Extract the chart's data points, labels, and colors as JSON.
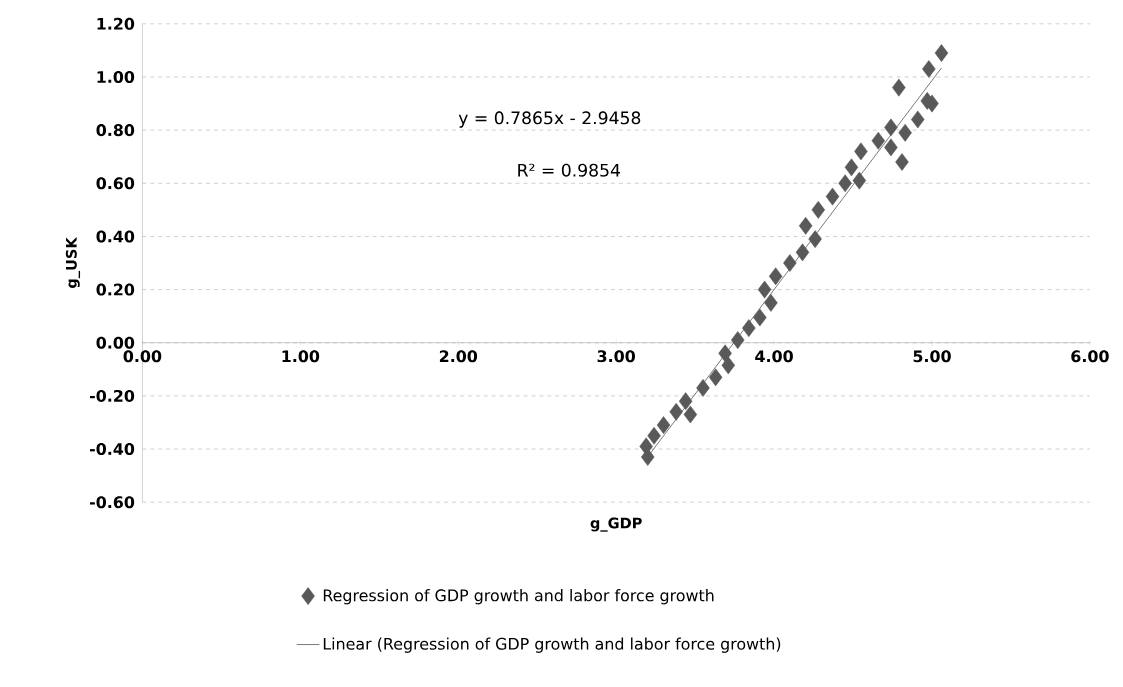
{
  "chart_data": {
    "type": "scatter",
    "xlabel": "g_GDP",
    "ylabel": "g_USK",
    "annotations": [
      "y = 0.7865x - 2.9458",
      "R² = 0.9854"
    ],
    "xlim": [
      0,
      6
    ],
    "ylim": [
      -0.6,
      1.2
    ],
    "xticks": [
      {
        "value": 0,
        "label": "0.00"
      },
      {
        "value": 1,
        "label": "1.00"
      },
      {
        "value": 2,
        "label": "2.00"
      },
      {
        "value": 3,
        "label": "3.00"
      },
      {
        "value": 4,
        "label": "4.00"
      },
      {
        "value": 5,
        "label": "5.00"
      },
      {
        "value": 6,
        "label": "6.00"
      }
    ],
    "yticks": [
      {
        "value": -0.6,
        "label": "-0.60"
      },
      {
        "value": -0.4,
        "label": "-0.40"
      },
      {
        "value": -0.2,
        "label": "-0.20"
      },
      {
        "value": 0,
        "label": "0.00"
      },
      {
        "value": 0.2,
        "label": "0.20"
      },
      {
        "value": 0.4,
        "label": "0.40"
      },
      {
        "value": 0.6,
        "label": "0.60"
      },
      {
        "value": 0.8,
        "label": "0.80"
      },
      {
        "value": 1.0,
        "label": "1.00"
      },
      {
        "value": 1.2,
        "label": "1.20"
      }
    ],
    "grid": "y",
    "legend": "bottom",
    "series": [
      {
        "name": "Regression of GDP growth and labor force growth",
        "marker": "diamond",
        "color": "#595959",
        "x": [
          3.2,
          3.19,
          3.24,
          3.3,
          3.38,
          3.47,
          3.44,
          3.55,
          3.63,
          3.71,
          3.69,
          3.77,
          3.84,
          3.91,
          3.98,
          3.94,
          4.01,
          4.1,
          4.18,
          4.26,
          4.2,
          4.28,
          4.37,
          4.45,
          4.54,
          4.49,
          4.55,
          4.66,
          4.74,
          4.74,
          4.81,
          4.83,
          4.91,
          4.97,
          5.0,
          4.79,
          4.98,
          5.06
        ],
        "values": [
          -0.43,
          -0.39,
          -0.35,
          -0.31,
          -0.26,
          -0.27,
          -0.22,
          -0.17,
          -0.13,
          -0.085,
          -0.04,
          0.01,
          0.055,
          0.095,
          0.15,
          0.2,
          0.25,
          0.3,
          0.34,
          0.39,
          0.44,
          0.5,
          0.55,
          0.6,
          0.61,
          0.66,
          0.72,
          0.76,
          0.81,
          0.735,
          0.68,
          0.79,
          0.84,
          0.91,
          0.9,
          0.96,
          1.03,
          1.09
        ]
      },
      {
        "name": "Linear (Regression of GDP growth and labor force growth)",
        "type": "line",
        "marker": "none",
        "line_style": "solid",
        "color": "#000000",
        "x": [
          3.19,
          5.06
        ],
        "values": [
          -0.437,
          1.034
        ]
      }
    ]
  }
}
